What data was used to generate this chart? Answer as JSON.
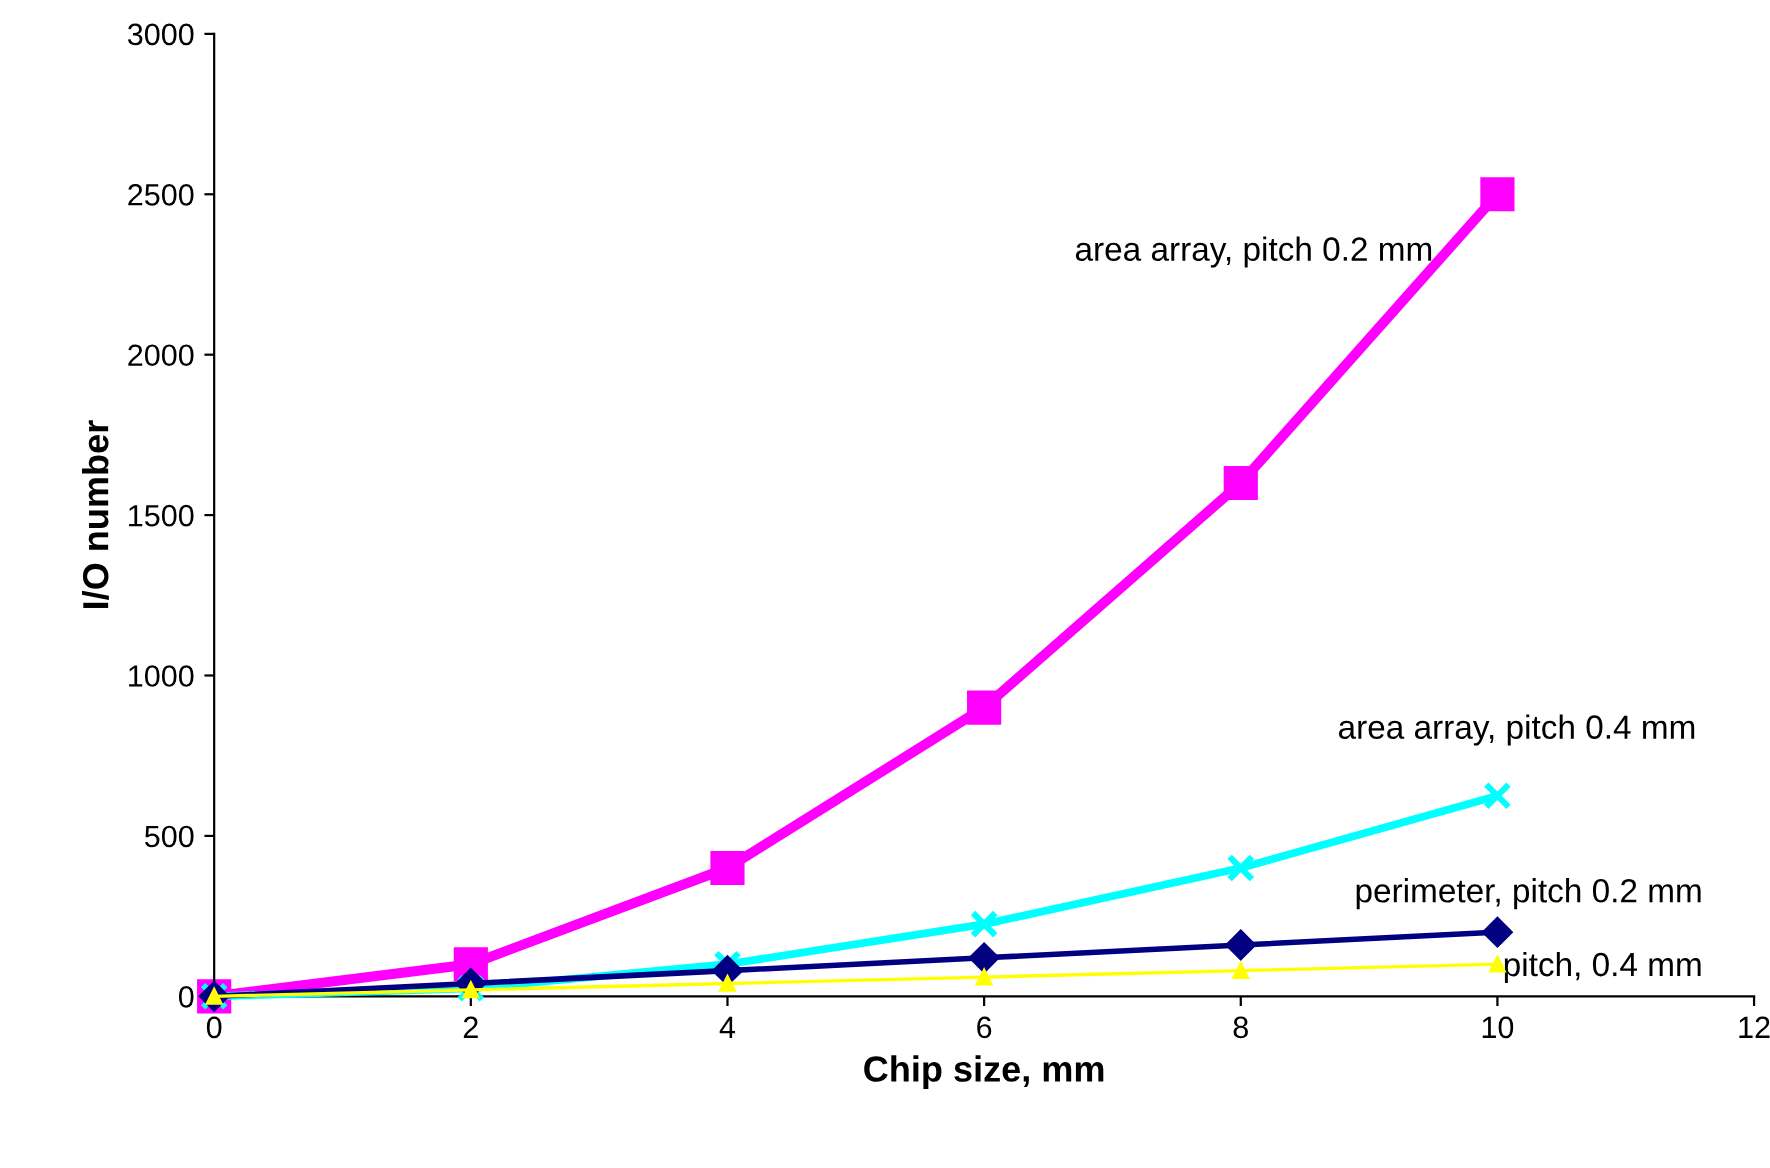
{
  "chart_data": {
    "type": "line",
    "xlabel": "Chip size, mm",
    "ylabel": "I/O number",
    "x": [
      0,
      2,
      4,
      6,
      8,
      10
    ],
    "series": [
      {
        "name": "area array, pitch 0.2 mm",
        "color": "#ff00ff",
        "marker": "square",
        "values": [
          0,
          100,
          400,
          900,
          1600,
          2500
        ]
      },
      {
        "name": "area array, pitch 0.4 mm",
        "color": "#00ffff",
        "marker": "cross",
        "values": [
          0,
          25,
          100,
          225,
          400,
          625
        ]
      },
      {
        "name": "perimeter, pitch 0.2 mm",
        "color": "#000080",
        "marker": "diamond",
        "values": [
          0,
          40,
          80,
          120,
          160,
          200
        ]
      },
      {
        "name": "pitch, 0.4 mm",
        "color": "#ffff00",
        "marker": "triangle",
        "values": [
          0,
          20,
          40,
          60,
          80,
          100
        ]
      }
    ],
    "xlim": [
      0,
      12
    ],
    "xticks": [
      0,
      2,
      4,
      6,
      8,
      10,
      12
    ],
    "ylim": [
      0,
      3000
    ],
    "yticks": [
      0,
      500,
      1000,
      1500,
      2000,
      2500,
      3000
    ],
    "grid": false,
    "legend": false,
    "line_style": "solid"
  }
}
